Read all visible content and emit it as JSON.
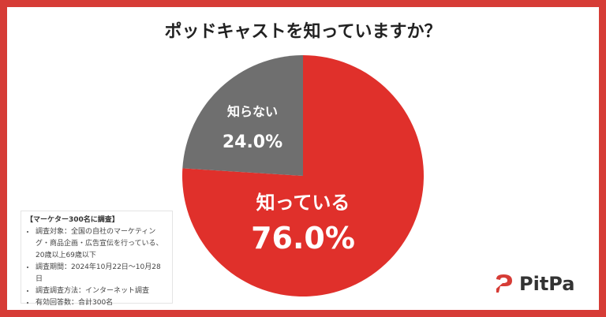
{
  "chart_data": {
    "type": "pie",
    "title": "ポッドキャストを知っていますか？",
    "slices": [
      {
        "label": "知っている",
        "value": 76.0,
        "display": "76.0%",
        "color": "#e0302b"
      },
      {
        "label": "知らない",
        "value": 24.0,
        "display": "24.0%",
        "color": "#6f6f6f"
      }
    ]
  },
  "note": {
    "heading": "【マーケター300名に調査】",
    "items": [
      "調査対象：全国の自社のマーケティング・商品企画・広告宣伝を行っている、20歳以上69歳以下",
      "調査期間：2024年10月22日〜10月28日",
      "調査調査方法：インターネット調査",
      "有効回答数：合計300名"
    ]
  },
  "logo": {
    "text": "PitPa",
    "color": "#d63c36"
  }
}
